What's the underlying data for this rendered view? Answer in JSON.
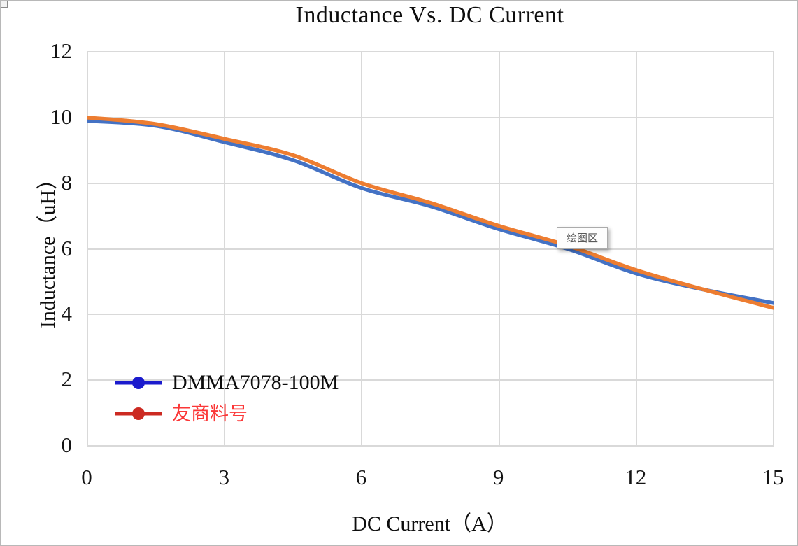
{
  "window": {
    "background": "#ffffff",
    "frame_border_color": "#b8b8b8"
  },
  "chart": {
    "title": "Inductance Vs. DC Current",
    "x_axis": {
      "label": "DC Current（A）",
      "ticks": [
        0,
        3,
        6,
        9,
        12,
        15
      ],
      "min": 0,
      "max": 15
    },
    "y_axis": {
      "label": "Inductance（uH）",
      "ticks": [
        0,
        2,
        4,
        6,
        8,
        10,
        12
      ],
      "min": 0,
      "max": 12
    },
    "grid_color": "#d9d9d9",
    "plot_border_color": "#d9d9d9",
    "tooltip": {
      "text": "绘图区",
      "text_color": "#595959",
      "border_color": "#ababab",
      "background": "#fdfdfd"
    },
    "legend": {
      "items": [
        {
          "label": "DMMA7078-100M",
          "label_color": "#0d0d0d",
          "marker_color": "#1b1bcd",
          "marker_icon": "line-with-circle-marker",
          "cjk": false
        },
        {
          "label": "友商料号",
          "label_color": "#fb3737",
          "marker_color": "#cc2a22",
          "marker_icon": "line-with-circle-marker",
          "cjk": true
        }
      ]
    }
  },
  "chart_data": {
    "type": "line",
    "title": "Inductance Vs. DC Current",
    "xlabel": "DC Current（A）",
    "ylabel": "Inductance（uH）",
    "xlim": [
      0,
      15
    ],
    "ylim": [
      0,
      12
    ],
    "grid": true,
    "legend_position": "inside-bottom-left",
    "x": [
      0,
      1.5,
      3,
      4.5,
      6,
      7.5,
      9,
      10.5,
      12,
      13.5,
      15
    ],
    "series": [
      {
        "name": "DMMA7078-100M",
        "color": "#4472c4",
        "values": [
          9.9,
          9.75,
          9.25,
          8.7,
          7.85,
          7.3,
          6.6,
          6.0,
          5.25,
          4.75,
          4.35
        ]
      },
      {
        "name": "友商料号",
        "color": "#ed7d31",
        "values": [
          10.0,
          9.8,
          9.35,
          8.85,
          8.0,
          7.4,
          6.7,
          6.1,
          5.35,
          4.75,
          4.2
        ]
      }
    ]
  }
}
